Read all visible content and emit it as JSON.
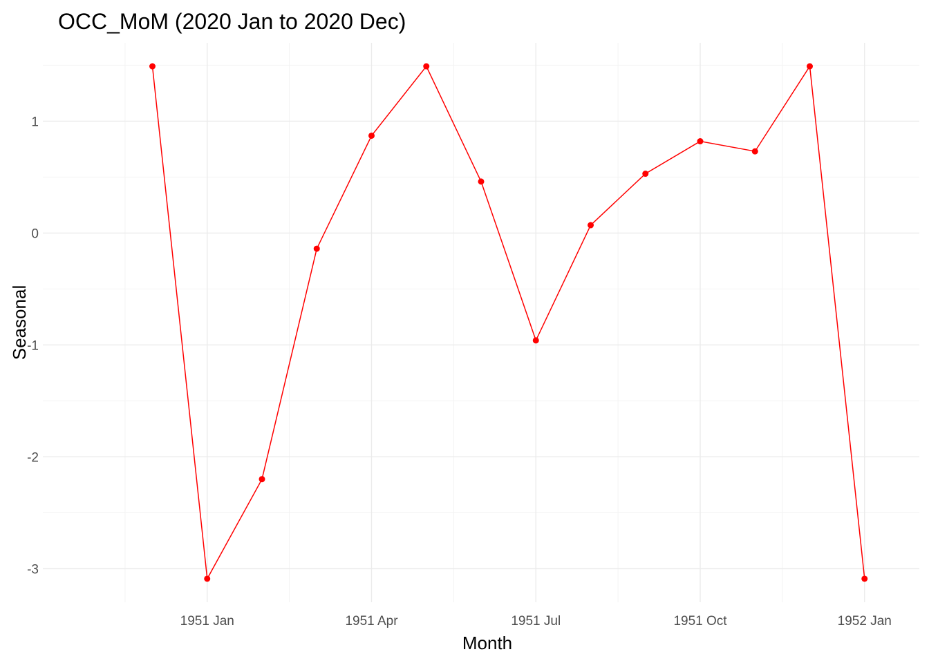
{
  "chart_data": {
    "type": "line",
    "title": "OCC_MoM (2020 Jan to 2020 Dec)",
    "xlabel": "Month",
    "ylabel": "Seasonal",
    "x_tick_labels": [
      "1951 Jan",
      "1951 Apr",
      "1951 Jul",
      "1951 Oct",
      "1952 Jan"
    ],
    "y_tick_labels": [
      "-3",
      "-2",
      "-1",
      "0",
      "1"
    ],
    "x_tick_values": [
      "1951-01",
      "1951-04",
      "1951-07",
      "1951-10",
      "1952-01"
    ],
    "y_tick_values": [
      -3,
      -2,
      -1,
      0,
      1
    ],
    "xlim": [
      "1950-10",
      "1952-02"
    ],
    "ylim": [
      -3.3,
      1.7
    ],
    "grid": true,
    "legend": "none",
    "series": [
      {
        "color": "#ff0000",
        "x": [
          "1950-12",
          "1951-01",
          "1951-02",
          "1951-03",
          "1951-04",
          "1951-05",
          "1951-06",
          "1951-07",
          "1951-08",
          "1951-09",
          "1951-10",
          "1951-11",
          "1951-12",
          "1952-01"
        ],
        "values": [
          1.49,
          -3.09,
          -2.2,
          -0.14,
          0.87,
          1.49,
          0.46,
          -0.96,
          0.07,
          0.53,
          0.82,
          0.73,
          1.49,
          -3.09
        ]
      }
    ]
  }
}
